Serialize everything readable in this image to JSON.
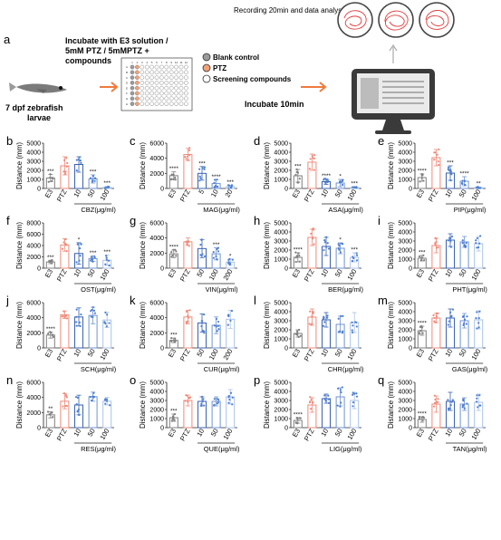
{
  "panel_a": {
    "letter": "a",
    "larvae_label": [
      "7 dpf zebrafish",
      "larvae"
    ],
    "incubate_label": [
      "Incubate with E3 solution /",
      "5mM PTZ / 5mMPTZ +",
      "compounds"
    ],
    "legend": [
      "Blank control",
      "PTZ",
      "Screening compounds"
    ],
    "incubate_time": "Incubate 10min",
    "recording": "Recording 20min and data analysis",
    "plate_cols": [
      "1",
      "2",
      "3",
      "4",
      "5",
      "6",
      "7",
      "8",
      "9",
      "10",
      "11",
      "12"
    ],
    "plate_rows": [
      "A",
      "B",
      "C",
      "D",
      "E",
      "F",
      "G",
      "H"
    ]
  },
  "colors": {
    "e3": "#7f7f7f",
    "ptz": "#f08a7a",
    "dark_blue": "#3a62b4",
    "mid_blue": "#6f93d6",
    "light_blue": "#a9c2ea",
    "dots": "#4d7fd0",
    "arrow": "#ef7b3d"
  },
  "chart_data": [
    {
      "type": "bar",
      "panel": "b",
      "ylabel": "Distance (mm)",
      "ylim": [
        0,
        5000
      ],
      "yticks": [
        "0",
        "1000",
        "2000",
        "3000",
        "4000",
        "5000"
      ],
      "categories": [
        "E3",
        "PTZ",
        "10",
        "50",
        "100"
      ],
      "group_label": "CBZ(μg/ml)",
      "values": [
        1150,
        2500,
        2650,
        1050,
        120
      ],
      "errors": [
        400,
        1000,
        850,
        450,
        120
      ],
      "significance": [
        "***",
        "",
        "",
        "***",
        "***"
      ]
    },
    {
      "type": "bar",
      "panel": "c",
      "ylabel": "Distance (mm)",
      "ylim": [
        0,
        6000
      ],
      "yticks": [
        "0",
        "2000",
        "4000",
        "6000"
      ],
      "categories": [
        "E3",
        "PTZ",
        "5",
        "10",
        "20"
      ],
      "group_label": "MAG(μg/ml)",
      "values": [
        1700,
        4500,
        2000,
        650,
        250
      ],
      "errors": [
        500,
        800,
        900,
        500,
        200
      ],
      "significance": [
        "****",
        "",
        "***",
        "****",
        "***"
      ]
    },
    {
      "type": "bar",
      "panel": "d",
      "ylabel": "Distance (mm)",
      "ylim": [
        0,
        5000
      ],
      "yticks": [
        "0",
        "1000",
        "2000",
        "3000",
        "4000",
        "5000"
      ],
      "categories": [
        "E3",
        "PTZ",
        "10",
        "50",
        "100"
      ],
      "group_label": "ASA(μg/ml)",
      "values": [
        1400,
        2900,
        750,
        600,
        100
      ],
      "errors": [
        700,
        900,
        300,
        400,
        80
      ],
      "significance": [
        "***",
        "",
        "****",
        "*",
        "***"
      ]
    },
    {
      "type": "bar",
      "panel": "e",
      "ylabel": "Distance (mm)",
      "ylim": [
        0,
        5000
      ],
      "yticks": [
        "0",
        "1000",
        "2000",
        "3000",
        "4000",
        "5000"
      ],
      "categories": [
        "E3",
        "PTZ",
        "10",
        "50",
        "100"
      ],
      "group_label": "PIP(μg/ml)",
      "values": [
        1200,
        3400,
        1700,
        800,
        100
      ],
      "errors": [
        400,
        900,
        800,
        500,
        80
      ],
      "significance": [
        "****",
        "",
        "***",
        "****",
        "**"
      ]
    },
    {
      "type": "bar",
      "panel": "f",
      "ylabel": "Distance (mm)",
      "ylim": [
        0,
        8000
      ],
      "yticks": [
        "0",
        "2000",
        "4000",
        "6000",
        "8000"
      ],
      "categories": [
        "E3",
        "PTZ",
        "10",
        "50",
        "100"
      ],
      "group_label": "OST(μg/ml)",
      "values": [
        1100,
        4100,
        2600,
        1700,
        1400
      ],
      "errors": [
        300,
        1100,
        1900,
        500,
        900
      ],
      "significance": [
        "***",
        "",
        "*",
        "***",
        "***"
      ]
    },
    {
      "type": "bar",
      "panel": "g",
      "ylabel": "Distance (mm)",
      "ylim": [
        0,
        6000
      ],
      "yticks": [
        "0",
        "2000",
        "4000",
        "6000"
      ],
      "categories": [
        "E3",
        "PTZ",
        "50",
        "100",
        "200"
      ],
      "group_label": "VIN(μg/ml)",
      "values": [
        1900,
        3500,
        2600,
        1900,
        800
      ],
      "errors": [
        500,
        500,
        1200,
        800,
        400
      ],
      "significance": [
        "****",
        "",
        "",
        "***",
        "*"
      ]
    },
    {
      "type": "bar",
      "panel": "h",
      "ylabel": "Distance (mm)",
      "ylim": [
        0,
        5000
      ],
      "yticks": [
        "0",
        "1000",
        "2000",
        "3000",
        "4000",
        "5000"
      ],
      "categories": [
        "E3",
        "PTZ",
        "10",
        "50",
        "100"
      ],
      "group_label": "BER(μg/ml)",
      "values": [
        1200,
        3400,
        2400,
        2200,
        1200
      ],
      "errors": [
        500,
        900,
        1000,
        600,
        500
      ],
      "significance": [
        "****",
        "",
        "",
        "*",
        "***"
      ]
    },
    {
      "type": "bar",
      "panel": "i",
      "ylabel": "Distance (mm)",
      "ylim": [
        0,
        5000
      ],
      "yticks": [
        "0",
        "1000",
        "2000",
        "3000",
        "4000",
        "5000"
      ],
      "categories": [
        "E3",
        "PTZ",
        "10",
        "50",
        "100"
      ],
      "group_label": "PHT(μg/ml)",
      "values": [
        1100,
        2500,
        3100,
        2900,
        2700
      ],
      "errors": [
        300,
        800,
        700,
        600,
        800
      ],
      "significance": [
        "***",
        "",
        "",
        "",
        ""
      ]
    },
    {
      "type": "bar",
      "panel": "j",
      "ylabel": "Distance (mm)",
      "ylim": [
        0,
        6000
      ],
      "yticks": [
        "0",
        "2000",
        "4000",
        "6000"
      ],
      "categories": [
        "E3",
        "PTZ",
        "10",
        "50",
        "100"
      ],
      "group_label": "SCH(μg/ml)",
      "values": [
        1700,
        4400,
        4100,
        4300,
        3700
      ],
      "errors": [
        400,
        500,
        1200,
        1100,
        1000
      ],
      "significance": [
        "****",
        "",
        "",
        "",
        ""
      ]
    },
    {
      "type": "bar",
      "panel": "k",
      "ylabel": "Distance (mm)",
      "ylim": [
        0,
        6000
      ],
      "yticks": [
        "0",
        "2000",
        "4000",
        "6000"
      ],
      "categories": [
        "E3",
        "PTZ",
        "50",
        "100",
        "200"
      ],
      "group_label": "CUR(μg/ml)",
      "values": [
        1000,
        4100,
        3300,
        3000,
        3800
      ],
      "errors": [
        300,
        900,
        1200,
        1100,
        1200
      ],
      "significance": [
        "***",
        "",
        "",
        "",
        ""
      ]
    },
    {
      "type": "bar",
      "panel": "l",
      "ylabel": "Distance (mm)",
      "ylim": [
        0,
        5000
      ],
      "yticks": [
        "0",
        "1000",
        "2000",
        "3000",
        "4000",
        "5000"
      ],
      "categories": [
        "E3",
        "PTZ",
        "10",
        "50",
        "100"
      ],
      "group_label": "CHR(μg/ml)",
      "values": [
        1600,
        3400,
        3100,
        2600,
        2800
      ],
      "errors": [
        400,
        900,
        800,
        900,
        1100
      ],
      "significance": [
        "",
        "",
        "",
        "",
        ""
      ]
    },
    {
      "type": "bar",
      "panel": "m",
      "ylabel": "Distance (mm)",
      "ylim": [
        0,
        5000
      ],
      "yticks": [
        "0",
        "1000",
        "2000",
        "3000",
        "4000",
        "5000"
      ],
      "categories": [
        "E3",
        "PTZ",
        "10",
        "50",
        "100"
      ],
      "group_label": "GAS(μg/ml)",
      "values": [
        1900,
        3300,
        3300,
        3000,
        3100
      ],
      "errors": [
        500,
        500,
        1000,
        800,
        1000
      ],
      "significance": [
        "****",
        "",
        "",
        "",
        ""
      ]
    },
    {
      "type": "bar",
      "panel": "n",
      "ylabel": "Distance (mm)",
      "ylim": [
        0,
        6000
      ],
      "yticks": [
        "0",
        "2000",
        "4000",
        "6000"
      ],
      "categories": [
        "E3",
        "PTZ",
        "10",
        "50",
        "100"
      ],
      "group_label": "RES(μg/ml)",
      "values": [
        1700,
        3500,
        3000,
        4100,
        3500
      ],
      "errors": [
        400,
        1000,
        1300,
        600,
        500
      ],
      "significance": [
        "**",
        "",
        "",
        "",
        ""
      ]
    },
    {
      "type": "bar",
      "panel": "o",
      "ylabel": "Distance (mm)",
      "ylim": [
        0,
        5000
      ],
      "yticks": [
        "0",
        "1000",
        "2000",
        "3000",
        "4000",
        "5000"
      ],
      "categories": [
        "E3",
        "PTZ",
        "10",
        "50",
        "100"
      ],
      "group_label": "QUE(μg/ml)",
      "values": [
        1100,
        3000,
        2900,
        2900,
        3400
      ],
      "errors": [
        400,
        600,
        500,
        500,
        800
      ],
      "significance": [
        "***",
        "",
        "",
        "",
        ""
      ]
    },
    {
      "type": "bar",
      "panel": "p",
      "ylabel": "Distance (mm)",
      "ylim": [
        0,
        5000
      ],
      "yticks": [
        "0",
        "1000",
        "2000",
        "3000",
        "4000",
        "5000"
      ],
      "categories": [
        "E3",
        "PTZ",
        "10",
        "50",
        "100"
      ],
      "group_label": "LIG(μg/ml)",
      "values": [
        800,
        2500,
        3200,
        3400,
        3000
      ],
      "errors": [
        300,
        800,
        500,
        1000,
        900
      ],
      "significance": [
        "****",
        "",
        "",
        "",
        ""
      ]
    },
    {
      "type": "bar",
      "panel": "q",
      "ylabel": "Distance (mm)",
      "ylim": [
        0,
        5000
      ],
      "yticks": [
        "0",
        "1000",
        "2000",
        "3000",
        "4000",
        "5000"
      ],
      "categories": [
        "E3",
        "PTZ",
        "10",
        "50",
        "100"
      ],
      "group_label": "TAN(μg/ml)",
      "values": [
        900,
        2600,
        2900,
        2600,
        2800
      ],
      "errors": [
        300,
        900,
        1000,
        700,
        900
      ],
      "significance": [
        "****",
        "",
        "",
        "",
        ""
      ]
    }
  ]
}
